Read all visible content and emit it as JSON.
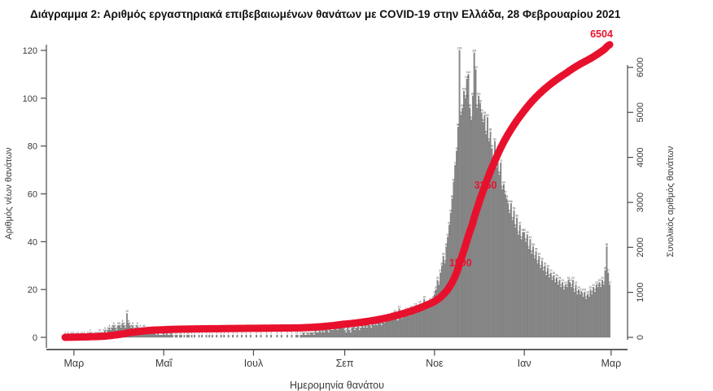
{
  "title": "Διάγραμμα 2: Αριθμός εργαστηριακά επιβεβαιωμένων θανάτων με COVID-19 στην Ελλάδα, 28 Φεβρουαρίου 2021",
  "chart_data": {
    "type": "bar",
    "title": "Διάγραμμα 2: Αριθμός εργαστηριακά επιβεβαιωμένων θανάτων με COVID-19 στην Ελλάδα, 28 Φεβρουαρίου 2021",
    "xlabel": "Ημερομηνία θανάτου",
    "ylabel_left": "Αριθμός νέων θανάτων",
    "ylabel_right": "Συνολικός αριθμός θανάτων",
    "x_tick_labels": [
      "Μαρ",
      "Μαΐ",
      "Ιουλ",
      "Σεπ",
      "Νοε",
      "Ιαν",
      "Μαρ"
    ],
    "x_tick_days": [
      6,
      67,
      128,
      190,
      251,
      312,
      371
    ],
    "y_left_ticks": [
      0,
      20,
      40,
      60,
      80,
      100,
      120
    ],
    "y_left_lim": [
      0,
      122
    ],
    "y_right_ticks": [
      0,
      1000,
      2000,
      3000,
      4000,
      5000,
      6000
    ],
    "y_right_lim": [
      0,
      6700
    ],
    "grid": "off",
    "legend": "none",
    "series": [
      {
        "name": "daily-deaths",
        "render": "bar",
        "axis": "left",
        "values": [
          1,
          0,
          1,
          0,
          1,
          1,
          1,
          0,
          1,
          1,
          0,
          1,
          1,
          1,
          0,
          1,
          1,
          2,
          1,
          0,
          1,
          1,
          1,
          2,
          2,
          1,
          2,
          3,
          2,
          3,
          4,
          3,
          4,
          5,
          4,
          3,
          5,
          5,
          4,
          6,
          5,
          4,
          10,
          6,
          5,
          4,
          5,
          3,
          4,
          5,
          3,
          4,
          3,
          4,
          4,
          3,
          3,
          2,
          3,
          2,
          2,
          2,
          1,
          2,
          1,
          1,
          1,
          2,
          1,
          2,
          1,
          1,
          2,
          1,
          0,
          1,
          1,
          0,
          1,
          1,
          0,
          1,
          0,
          1,
          1,
          0,
          1,
          0,
          1,
          0,
          0,
          1,
          0,
          1,
          0,
          0,
          1,
          0,
          1,
          0,
          1,
          0,
          0,
          1,
          0,
          0,
          1,
          0,
          1,
          0,
          0,
          1,
          0,
          0,
          1,
          0,
          0,
          1,
          0,
          0,
          1,
          0,
          0,
          1,
          0,
          0,
          1,
          0,
          0,
          0,
          1,
          0,
          0,
          1,
          0,
          0,
          0,
          1,
          0,
          0,
          1,
          0,
          0,
          0,
          1,
          0,
          0,
          1,
          0,
          0,
          0,
          1,
          0,
          0,
          1,
          0,
          0,
          1,
          1,
          0,
          1,
          1,
          2,
          1,
          1,
          2,
          1,
          2,
          2,
          1,
          3,
          2,
          2,
          3,
          2,
          3,
          2,
          4,
          3,
          2,
          4,
          3,
          3,
          5,
          4,
          3,
          5,
          4,
          5,
          4,
          3,
          2,
          4,
          3,
          2,
          4,
          5,
          3,
          4,
          5,
          3,
          4,
          6,
          4,
          5,
          4,
          6,
          5,
          4,
          7,
          5,
          6,
          5,
          7,
          6,
          5,
          7,
          6,
          8,
          7,
          8,
          7,
          9,
          8,
          10,
          8,
          7,
          12,
          9,
          8,
          10,
          9,
          11,
          10,
          9,
          12,
          10,
          11,
          13,
          12,
          11,
          14,
          12,
          13,
          16,
          13,
          14,
          13,
          15,
          14,
          16,
          18,
          20,
          24,
          22,
          27,
          30,
          34,
          31,
          38,
          42,
          47,
          52,
          58,
          65,
          72,
          78,
          88,
          120,
          93,
          96,
          103,
          100,
          108,
          110,
          96,
          91,
          101,
          119,
          112,
          96,
          101,
          98,
          94,
          90,
          93,
          85,
          92,
          82,
          86,
          79,
          73,
          82,
          71,
          76,
          68,
          73,
          62,
          64,
          60,
          58,
          56,
          52,
          56,
          49,
          53,
          46,
          50,
          43,
          47,
          41,
          44,
          44,
          40,
          43,
          37,
          41,
          35,
          38,
          33,
          36,
          31,
          34,
          29,
          32,
          28,
          30,
          26,
          29,
          25,
          27,
          24,
          26,
          23,
          25,
          22,
          24,
          21,
          23,
          20,
          22,
          21,
          24,
          23,
          21,
          24,
          19,
          22,
          18,
          20,
          18,
          19,
          17,
          19,
          16,
          18,
          17,
          20,
          18,
          21,
          19,
          22,
          21,
          23,
          21,
          24,
          22,
          28,
          38,
          27,
          22
        ]
      },
      {
        "name": "cumulative-deaths",
        "render": "line",
        "axis": "right",
        "derived": "cumulative-sum-of-daily-deaths",
        "final_value": 6504
      }
    ],
    "annotations": [
      {
        "label": "1500",
        "day": 267
      },
      {
        "label": "3250",
        "day": 284
      },
      {
        "label": "6504",
        "day": 370
      }
    ],
    "colors": {
      "bar_fill": "#8a8a8a",
      "bar_edge": "#646464",
      "bar_value_text": "#3c3c3c",
      "line": "#e8112d",
      "annotation_text": "#e8112d",
      "axis": "#4a4a4a",
      "tick_text": "#3a3a3a",
      "title_text": "#111111"
    }
  }
}
